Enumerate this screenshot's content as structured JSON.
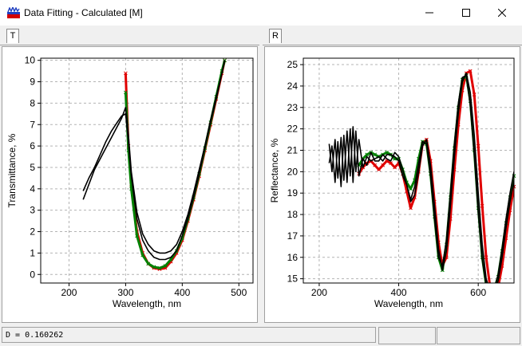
{
  "window": {
    "title": "Data Fitting - Calculated [M]",
    "icon": "app-icon",
    "controls": [
      "minimize-icon",
      "maximize-icon",
      "close-icon"
    ]
  },
  "tabs": {
    "left": "T",
    "right": "R"
  },
  "status": {
    "d_value": "D = 0.160262"
  },
  "colors": {
    "measured_red": "#e00000",
    "measured_green": "#008000",
    "calculated": "#000000",
    "grid": "#b4b4b4"
  },
  "chart_data": [
    {
      "type": "line",
      "xlabel": "Wavelength, nm",
      "ylabel": "Transmittance, %",
      "xlim": [
        150,
        525
      ],
      "ylim": [
        -0.4,
        10.1
      ],
      "xticks": [
        200,
        300,
        400,
        500
      ],
      "yticks": [
        0,
        1,
        2,
        3,
        4,
        5,
        6,
        7,
        8,
        9,
        10
      ],
      "grid": true,
      "series": [
        {
          "role": "calculated",
          "x": [
            225,
            235,
            245,
            255,
            265,
            275,
            285,
            293,
            300,
            305,
            310,
            320,
            330,
            340,
            350,
            360,
            370,
            380,
            390,
            400,
            410,
            420,
            430,
            440,
            450,
            460,
            470,
            475
          ],
          "y": [
            3.5,
            4.2,
            4.9,
            5.4,
            5.9,
            6.4,
            6.9,
            7.3,
            7.8,
            6.5,
            4.8,
            2.9,
            1.9,
            1.4,
            1.1,
            1.0,
            1.0,
            1.1,
            1.4,
            2.0,
            2.8,
            3.8,
            4.9,
            6.0,
            7.2,
            8.3,
            9.4,
            10.0
          ]
        },
        {
          "role": "calculated",
          "x": [
            225,
            235,
            245,
            255,
            265,
            275,
            285,
            293,
            300,
            305,
            310,
            320,
            330,
            340,
            350,
            360,
            370,
            380,
            390,
            400,
            410,
            420,
            430,
            440,
            450,
            460,
            470,
            475
          ],
          "y": [
            3.9,
            4.5,
            5.0,
            5.6,
            6.2,
            6.7,
            7.1,
            7.4,
            7.5,
            6.2,
            4.6,
            2.6,
            1.6,
            1.1,
            0.8,
            0.7,
            0.7,
            0.8,
            1.1,
            1.8,
            2.6,
            3.6,
            4.7,
            5.9,
            7.1,
            8.2,
            9.4,
            10.0
          ]
        },
        {
          "role": "measured",
          "x": [
            300,
            305,
            310,
            320,
            330,
            340,
            350,
            360,
            370,
            380,
            390,
            400,
            410,
            420,
            430,
            440,
            450,
            460,
            470,
            475
          ],
          "y": [
            9.4,
            6.0,
            4.2,
            2.0,
            1.0,
            0.5,
            0.3,
            0.25,
            0.3,
            0.6,
            1.0,
            1.6,
            2.5,
            3.5,
            4.6,
            5.8,
            7.0,
            8.2,
            9.4,
            10.0
          ]
        },
        {
          "role": "measured",
          "x": [
            300,
            305,
            310,
            320,
            330,
            340,
            350,
            360,
            370,
            380,
            390,
            400,
            410,
            420,
            430,
            440,
            450,
            460,
            470,
            475
          ],
          "y": [
            8.5,
            5.8,
            4.0,
            1.8,
            0.9,
            0.5,
            0.35,
            0.3,
            0.4,
            0.7,
            1.1,
            1.7,
            2.6,
            3.6,
            4.7,
            5.9,
            7.1,
            8.3,
            9.5,
            10.0
          ]
        }
      ]
    },
    {
      "type": "line",
      "xlabel": "Wavelength, nm",
      "ylabel": "Reflectance, %",
      "xlim": [
        160,
        690
      ],
      "ylim": [
        14.8,
        25.3
      ],
      "xticks": [
        200,
        400,
        600
      ],
      "yticks": [
        15,
        16,
        17,
        18,
        19,
        20,
        21,
        22,
        23,
        24,
        25
      ],
      "grid": true,
      "series": [
        {
          "role": "calculated",
          "x": [
            225,
            232,
            240,
            247,
            255,
            262,
            270,
            278,
            285,
            292,
            300,
            310,
            320,
            330,
            340,
            350,
            360,
            370,
            380,
            390,
            400,
            410,
            420,
            430,
            440,
            450,
            460,
            470,
            480,
            490,
            500,
            510,
            520,
            530,
            540,
            550,
            560,
            570,
            580,
            590,
            600,
            610,
            620,
            630,
            640,
            650,
            660,
            670,
            680,
            690
          ],
          "y": [
            21.3,
            20.0,
            21.5,
            19.7,
            21.6,
            19.6,
            21.9,
            19.8,
            22.1,
            20.0,
            21.5,
            20.2,
            20.7,
            20.5,
            20.6,
            20.7,
            20.5,
            20.8,
            20.8,
            20.7,
            20.5,
            19.8,
            19.4,
            18.7,
            19.3,
            20.4,
            21.4,
            21.3,
            19.8,
            17.8,
            16.0,
            15.6,
            16.8,
            19.0,
            21.3,
            23.2,
            24.4,
            24.5,
            23.1,
            20.8,
            18.1,
            15.9,
            14.7,
            14.3,
            14.5,
            15.2,
            16.4,
            17.8,
            19.0,
            20.0
          ]
        },
        {
          "role": "calculated",
          "x": [
            225,
            232,
            240,
            247,
            255,
            262,
            270,
            278,
            285,
            292,
            300,
            310,
            320,
            330,
            340,
            350,
            360,
            370,
            380,
            390,
            400,
            410,
            420,
            430,
            440,
            450,
            460,
            470,
            480,
            490,
            500,
            510,
            520,
            530,
            540,
            550,
            560,
            570,
            580,
            590,
            600,
            610,
            620,
            630,
            640,
            650,
            660,
            670,
            680,
            690
          ],
          "y": [
            20.4,
            21.2,
            19.5,
            21.4,
            19.3,
            21.7,
            19.5,
            22.0,
            19.5,
            21.9,
            19.8,
            20.6,
            20.3,
            20.9,
            20.5,
            20.5,
            20.8,
            20.6,
            20.5,
            20.9,
            20.7,
            20.1,
            19.4,
            18.6,
            18.9,
            20.0,
            21.2,
            21.5,
            20.3,
            18.4,
            16.4,
            15.4,
            16.3,
            18.4,
            20.7,
            22.8,
            24.2,
            24.6,
            23.7,
            21.7,
            19.0,
            16.6,
            15.0,
            14.4,
            14.4,
            14.9,
            16.0,
            17.4,
            18.6,
            19.6
          ]
        },
        {
          "role": "measured",
          "x": [
            300,
            310,
            320,
            330,
            340,
            350,
            360,
            370,
            380,
            390,
            400,
            410,
            420,
            430,
            440,
            450,
            460,
            470,
            480,
            490,
            500,
            510,
            520,
            530,
            540,
            550,
            560,
            570,
            580,
            590,
            600,
            610,
            620,
            630,
            640,
            650,
            660,
            670,
            680,
            690
          ],
          "y": [
            19.9,
            20.2,
            20.4,
            20.5,
            20.3,
            20.1,
            20.3,
            20.5,
            20.4,
            20.2,
            20.4,
            19.9,
            19.1,
            18.3,
            18.8,
            20.0,
            21.3,
            21.5,
            20.5,
            18.6,
            16.7,
            15.6,
            16.0,
            17.8,
            20.1,
            22.2,
            23.8,
            24.6,
            24.7,
            23.6,
            21.2,
            18.4,
            16.0,
            14.6,
            14.3,
            14.6,
            15.6,
            16.9,
            18.2,
            19.3
          ]
        },
        {
          "role": "measured",
          "x": [
            300,
            310,
            320,
            330,
            340,
            350,
            360,
            370,
            380,
            390,
            400,
            410,
            420,
            430,
            440,
            450,
            460,
            470,
            480,
            490,
            500,
            510,
            520,
            530,
            540,
            550,
            560,
            570,
            580,
            590,
            600,
            610,
            620,
            630,
            640,
            650,
            660,
            670,
            680,
            690
          ],
          "y": [
            20.3,
            20.6,
            20.8,
            20.9,
            20.8,
            20.7,
            20.8,
            20.9,
            20.8,
            20.6,
            20.6,
            20.1,
            19.5,
            19.2,
            19.6,
            20.6,
            21.4,
            21.3,
            19.9,
            17.9,
            16.0,
            15.4,
            16.6,
            18.8,
            21.1,
            23.0,
            24.3,
            24.5,
            23.3,
            21.0,
            18.3,
            16.0,
            14.7,
            14.3,
            14.5,
            15.1,
            16.3,
            17.6,
            18.8,
            19.8
          ]
        }
      ]
    }
  ]
}
